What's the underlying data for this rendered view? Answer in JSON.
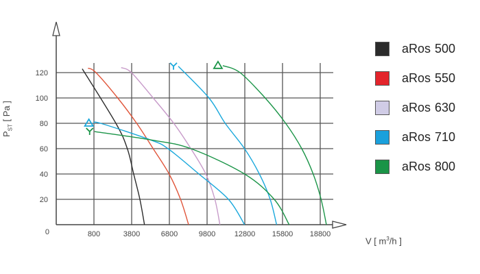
{
  "chart_data": {
    "type": "line",
    "xlabel_parts": {
      "pre": "V [ m",
      "sup": "3",
      "post": "/h ]"
    },
    "ylabel_parts": {
      "pre": "P",
      "sub": "ST",
      "post": " [ Pa ]"
    },
    "x_ticks": [
      800,
      3800,
      6800,
      9800,
      12800,
      15800,
      18800
    ],
    "x_tick_labels": [
      "800",
      "3800",
      "6800",
      "9800",
      "12800",
      "15800",
      "18800"
    ],
    "y_ticks": [
      0,
      20,
      40,
      60,
      80,
      100,
      120
    ],
    "y_tick_labels": [
      "0",
      "20",
      "40",
      "60",
      "80",
      "100",
      "120"
    ],
    "xlim": [
      -2200,
      20800
    ],
    "ylim": [
      0,
      130
    ],
    "grid": true,
    "legend_position": "right",
    "legend": [
      {
        "label": "aRos",
        "size": "500",
        "color": "#2b2b2b"
      },
      {
        "label": "aRos",
        "size": "550",
        "color": "#e3242b"
      },
      {
        "label": "aRos",
        "size": "630",
        "color": "#d0cce6"
      },
      {
        "label": "aRos",
        "size": "710",
        "color": "#1aa0dc"
      },
      {
        "label": "aRos",
        "size": "800",
        "color": "#1a9447"
      }
    ],
    "series": [
      {
        "name": "aRos 500",
        "color": "#2b2b2b",
        "points": [
          [
            -130,
            123
          ],
          [
            2545,
            80
          ],
          [
            3455,
            60
          ],
          [
            3960,
            40
          ],
          [
            4455,
            20
          ],
          [
            4820,
            0
          ]
        ]
      },
      {
        "name": "aRos 550",
        "color": "#e0553a",
        "points": [
          [
            325,
            123.5
          ],
          [
            960,
            120
          ],
          [
            2690,
            100
          ],
          [
            4200,
            80
          ],
          [
            5510,
            60
          ],
          [
            6780,
            40
          ],
          [
            7690,
            20
          ],
          [
            8330,
            0
          ]
        ]
      },
      {
        "name": "aRos 630",
        "color": "#c79ac9",
        "points": [
          [
            2965,
            124
          ],
          [
            3780,
            120
          ],
          [
            5510,
            100
          ],
          [
            7150,
            80
          ],
          [
            8510,
            60
          ],
          [
            9700,
            40
          ],
          [
            10420,
            20
          ],
          [
            10820,
            0
          ]
        ]
      },
      {
        "name": "aRos 710",
        "marker": "Δ",
        "color": "#1aa8dc",
        "points": [
          [
            780,
            80
          ],
          [
            1330,
            80
          ],
          [
            5270,
            67
          ],
          [
            6690,
            60
          ],
          [
            9150,
            40
          ],
          [
            11500,
            20
          ],
          [
            12780,
            0
          ]
        ]
      },
      {
        "name": "aRos 710",
        "marker": "Y",
        "color": "#1aa8dc",
        "points": [
          [
            7510,
            125
          ],
          [
            9950,
            100
          ],
          [
            11240,
            80
          ],
          [
            12780,
            60
          ],
          [
            13960,
            40
          ],
          [
            14820,
            20
          ],
          [
            15330,
            0
          ]
        ]
      },
      {
        "name": "aRos 800",
        "marker": "Y",
        "color": "#1a9447",
        "points": [
          [
            840,
            73.5
          ],
          [
            5270,
            67
          ],
          [
            8510,
            60
          ],
          [
            12780,
            40
          ],
          [
            15140,
            20
          ],
          [
            16330,
            0
          ]
        ]
      },
      {
        "name": "aRos 800",
        "marker": "Δ",
        "color": "#1a9447",
        "points": [
          [
            11050,
            125.5
          ],
          [
            12420,
            120
          ],
          [
            14420,
            100
          ],
          [
            16050,
            80
          ],
          [
            17330,
            60
          ],
          [
            18240,
            40
          ],
          [
            18870,
            20
          ],
          [
            19290,
            0
          ]
        ]
      }
    ]
  }
}
